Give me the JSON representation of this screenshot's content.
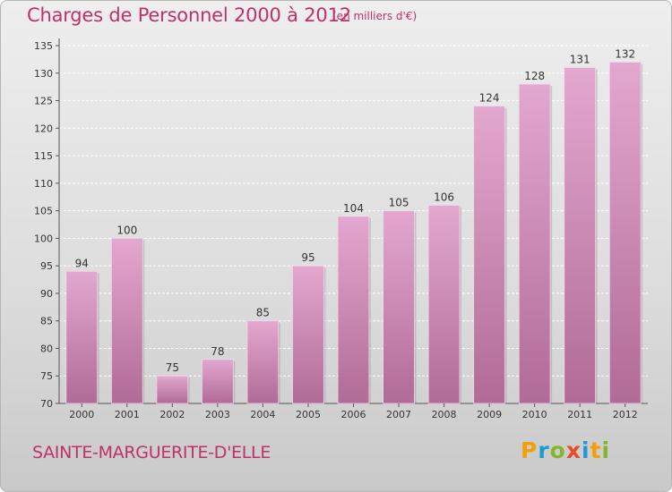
{
  "page": {
    "title": "Charges de Personnel 2000 à 2012",
    "subtitle": "(en milliers d'€)",
    "commune": "SAINTE-MARGUERITE-D'ELLE"
  },
  "logo": {
    "letters": [
      "P",
      "r",
      "o",
      "x",
      "i",
      "t",
      "i"
    ],
    "colors": [
      "#f2a007",
      "#1d9ad6",
      "#86b52a",
      "#e94b2b",
      "#1d9ad6",
      "#f2a007",
      "#86b52a"
    ]
  },
  "colors": {
    "bar_top": "#e3a8cf",
    "bar_bottom": "#b06b96",
    "title": "#c0306a"
  },
  "chart_data": {
    "type": "bar",
    "title": "Charges de Personnel 2000 à 2012",
    "subtitle": "(en milliers d'€)",
    "categories": [
      "2000",
      "2001",
      "2002",
      "2003",
      "2004",
      "2005",
      "2006",
      "2007",
      "2008",
      "2009",
      "2010",
      "2011",
      "2012"
    ],
    "values": [
      94,
      100,
      75,
      78,
      85,
      95,
      104,
      105,
      106,
      124,
      128,
      131,
      132
    ],
    "ylim": [
      70,
      135
    ],
    "yticks": [
      70,
      75,
      80,
      85,
      90,
      95,
      100,
      105,
      110,
      115,
      120,
      125,
      130,
      135
    ],
    "grid": true,
    "legend": "none"
  }
}
